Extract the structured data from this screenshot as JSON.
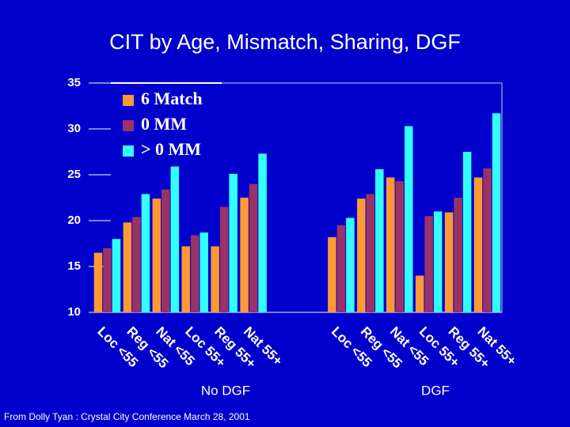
{
  "chart_data": {
    "type": "bar",
    "title": "CIT by Age, Mismatch, Sharing, DGF",
    "categories": [
      "Loc <55",
      "Reg <55",
      "Nat <55",
      "Loc 55+",
      "Reg 55+",
      "Nat 55+",
      null,
      null,
      "Loc <55",
      "Reg <55",
      "Nat <55",
      "Loc 55+",
      "Reg 55+",
      "Nat 55+"
    ],
    "series": [
      {
        "name": "6 Match",
        "color": "#ff9933",
        "values": [
          16.5,
          19.8,
          22.4,
          17.2,
          17.2,
          22.5,
          null,
          null,
          18.2,
          22.4,
          24.7,
          14.0,
          20.9,
          24.7
        ]
      },
      {
        "name": "0 MM",
        "color": "#993366",
        "values": [
          17.0,
          20.4,
          23.4,
          18.4,
          21.5,
          24.0,
          null,
          null,
          19.5,
          22.9,
          24.3,
          20.5,
          22.5,
          25.7
        ]
      },
      {
        "name": "> 0 MM",
        "color": "#33ffff",
        "values": [
          18.0,
          22.9,
          25.9,
          18.7,
          25.1,
          27.3,
          null,
          null,
          20.3,
          25.6,
          30.3,
          21.0,
          27.5,
          31.7
        ]
      }
    ],
    "ylim": [
      10,
      35
    ],
    "yticks": [
      10,
      15,
      20,
      25,
      30,
      35
    ],
    "grid": false,
    "legend": "upper left",
    "group_labels": [
      "No DGF",
      "DGF"
    ],
    "footnote": "From Dolly Tyan : Crystal City Conference March 28, 2001"
  }
}
